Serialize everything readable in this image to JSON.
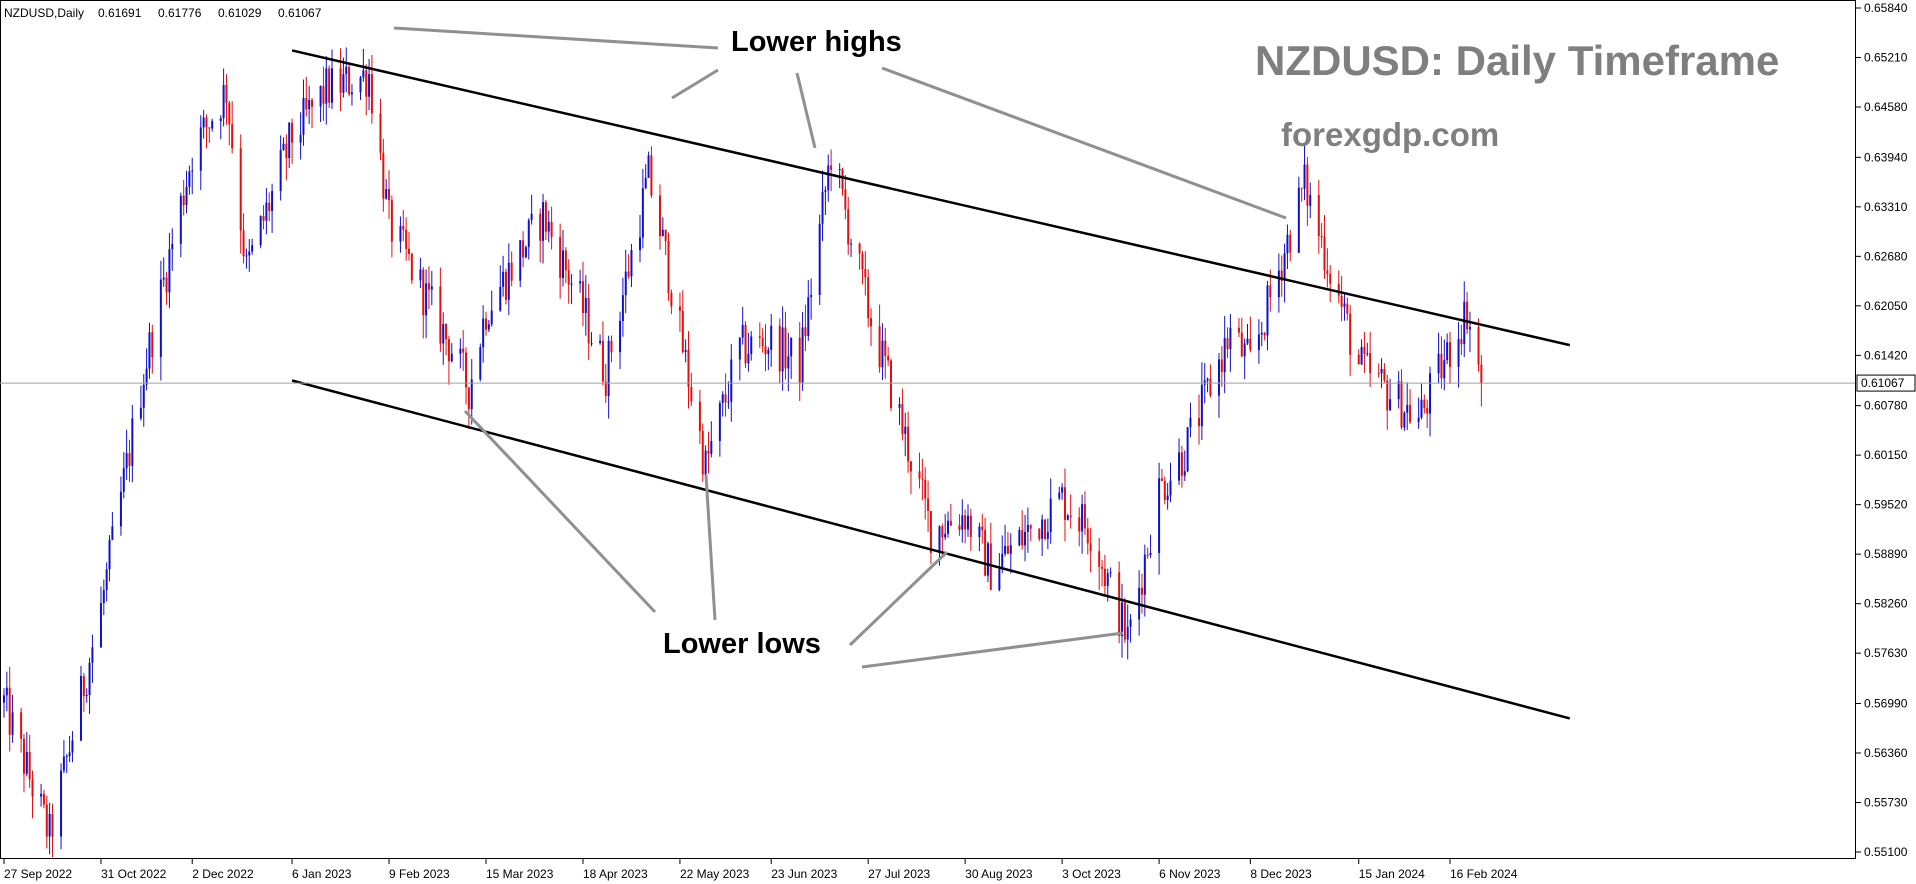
{
  "header": {
    "symbol": "NZDUSD,Daily",
    "open": "0.61691",
    "high": "0.61776",
    "low": "0.61029",
    "close": "0.61067"
  },
  "watermark": {
    "title": "NZDUSD: Daily Timeframe",
    "site": "forexgdp.com"
  },
  "annotations": {
    "lower_highs": "Lower highs",
    "lower_lows": "Lower lows"
  },
  "colors": {
    "bull": "#1010c8",
    "bear": "#e01010",
    "trendline": "#000000",
    "pointer": "#909090",
    "grid": "#a0a0a0",
    "text_gray": "#7f7f7f"
  },
  "chart_data": {
    "type": "candlestick",
    "symbol": "NZDUSD",
    "timeframe": "Daily",
    "y_ticks": [
      "0.65840",
      "0.65210",
      "0.64580",
      "0.63940",
      "0.63310",
      "0.62680",
      "0.62050",
      "0.61420",
      "0.60780",
      "0.60150",
      "0.59520",
      "0.58890",
      "0.58260",
      "0.57630",
      "0.56990",
      "0.56360",
      "0.55730",
      "0.55100"
    ],
    "x_ticks": [
      "27 Sep 2022",
      "31 Oct 2022",
      "2 Dec 2022",
      "6 Jan 2023",
      "9 Feb 2023",
      "15 Mar 2023",
      "18 Apr 2023",
      "22 May 2023",
      "23 Jun 2023",
      "27 Jul 2023",
      "30 Aug 2023",
      "3 Oct 2023",
      "6 Nov 2023",
      "8 Dec 2023",
      "15 Jan 2024",
      "16 Feb 2024"
    ],
    "ylim": [
      0.55,
      0.659
    ],
    "current_price": "0.61067",
    "key_points": [
      {
        "date": "27 Sep 2022",
        "price": 0.57
      },
      {
        "date": "13 Oct 2022",
        "price": 0.553
      },
      {
        "date": "31 Oct 2022",
        "price": 0.582
      },
      {
        "date": "15 Nov 2022",
        "price": 0.612
      },
      {
        "date": "2 Dec 2022",
        "price": 0.64
      },
      {
        "date": "14 Dec 2022",
        "price": 0.648
      },
      {
        "date": "21 Dec 2022",
        "price": 0.625
      },
      {
        "date": "6 Jan 2023",
        "price": 0.642
      },
      {
        "date": "18 Jan 2023",
        "price": 0.648
      },
      {
        "date": "2 Feb 2023",
        "price": 0.65
      },
      {
        "date": "9 Feb 2023",
        "price": 0.631
      },
      {
        "date": "3 Mar 2023",
        "price": 0.615
      },
      {
        "date": "9 Mar 2023",
        "price": 0.61
      },
      {
        "date": "15 Mar 2023",
        "price": 0.62
      },
      {
        "date": "4 Apr 2023",
        "price": 0.632
      },
      {
        "date": "18 Apr 2023",
        "price": 0.62
      },
      {
        "date": "26 Apr 2023",
        "price": 0.612
      },
      {
        "date": "11 May 2023",
        "price": 0.637
      },
      {
        "date": "18 May 2023",
        "price": 0.625
      },
      {
        "date": "22 May 2023",
        "price": 0.617
      },
      {
        "date": "31 May 2023",
        "price": 0.6
      },
      {
        "date": "12 Jun 2023",
        "price": 0.615
      },
      {
        "date": "23 Jun 2023",
        "price": 0.616
      },
      {
        "date": "3 Jul 2023",
        "price": 0.613
      },
      {
        "date": "14 Jul 2023",
        "price": 0.64
      },
      {
        "date": "27 Jul 2023",
        "price": 0.62
      },
      {
        "date": "8 Aug 2023",
        "price": 0.605
      },
      {
        "date": "18 Aug 2023",
        "price": 0.592
      },
      {
        "date": "30 Aug 2023",
        "price": 0.594
      },
      {
        "date": "8 Sep 2023",
        "price": 0.587
      },
      {
        "date": "3 Oct 2023",
        "price": 0.596
      },
      {
        "date": "13 Oct 2023",
        "price": 0.592
      },
      {
        "date": "26 Oct 2023",
        "price": 0.578
      },
      {
        "date": "6 Nov 2023",
        "price": 0.597
      },
      {
        "date": "15 Nov 2023",
        "price": 0.602
      },
      {
        "date": "1 Dec 2023",
        "price": 0.617
      },
      {
        "date": "8 Dec 2023",
        "price": 0.613
      },
      {
        "date": "27 Dec 2023",
        "price": 0.636
      },
      {
        "date": "15 Jan 2024",
        "price": 0.613
      },
      {
        "date": "24 Jan 2024",
        "price": 0.61
      },
      {
        "date": "5 Feb 2024",
        "price": 0.606
      },
      {
        "date": "16 Feb 2024",
        "price": 0.615
      },
      {
        "date": "22 Feb 2024",
        "price": 0.62
      },
      {
        "date": "27 Feb 2024",
        "price": 0.6107
      }
    ],
    "trendlines": [
      {
        "name": "upper",
        "from": {
          "date": "6 Jan 2023",
          "price": 0.653
        },
        "to": {
          "date": "29 Mar 2024",
          "price": 0.6155
        }
      },
      {
        "name": "lower",
        "from": {
          "date": "6 Jan 2023",
          "price": 0.611
        },
        "to": {
          "date": "29 Mar 2024",
          "price": 0.568
        }
      }
    ]
  }
}
